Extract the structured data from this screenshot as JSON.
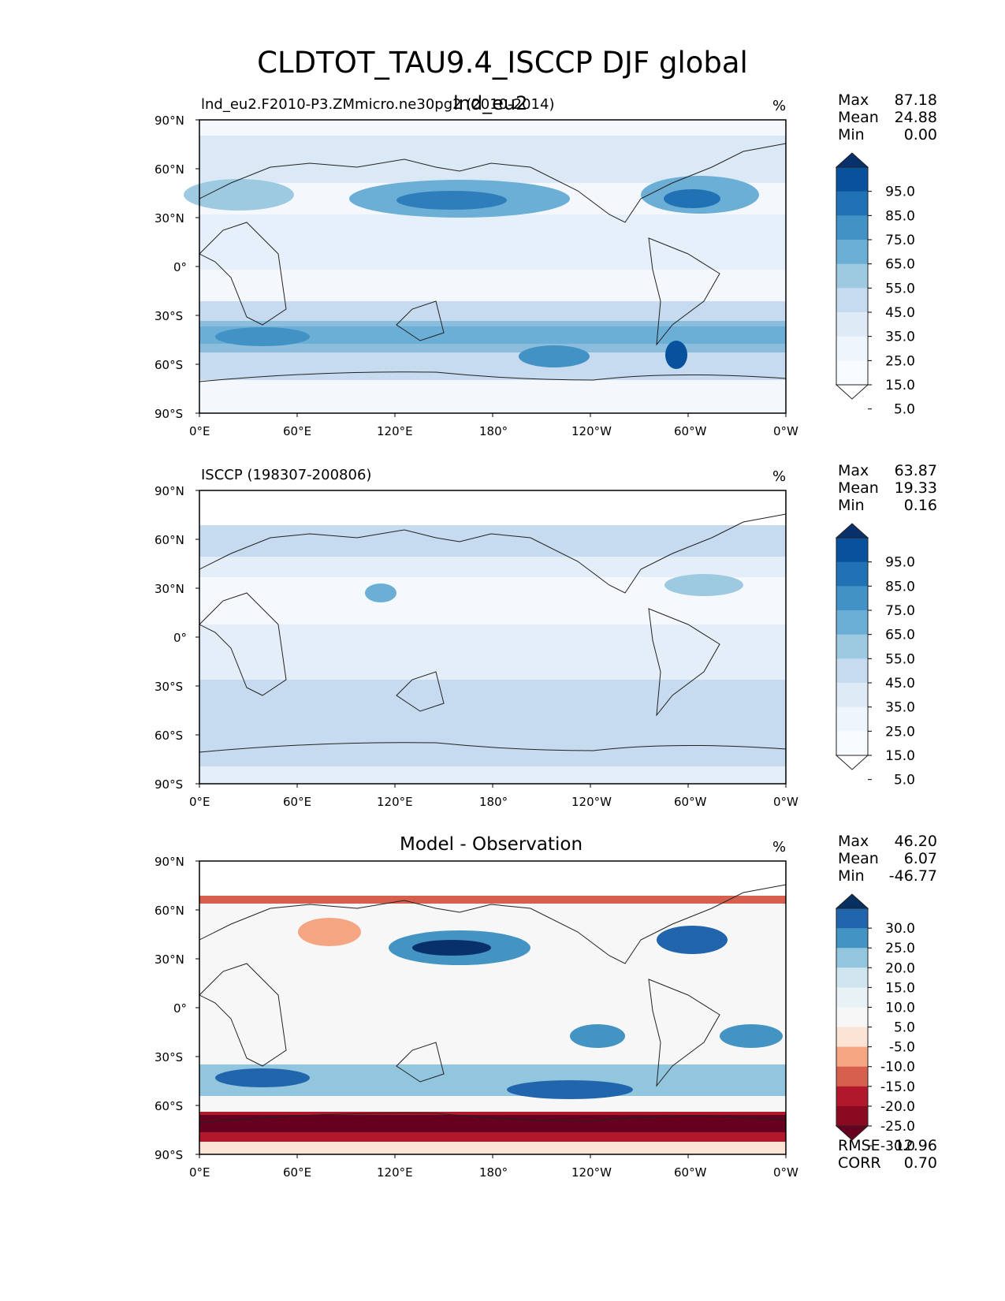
{
  "figure": {
    "title": "CLDTOT_TAU9.4_ISCCP DJF global",
    "units": "%",
    "lat_ticks": [
      "90°N",
      "60°N",
      "30°N",
      "0°",
      "30°S",
      "60°S",
      "90°S"
    ],
    "lon_ticks": [
      "0°E",
      "60°E",
      "120°E",
      "180°",
      "120°W",
      "60°W",
      "0°W"
    ]
  },
  "panels": [
    {
      "left_title": "lnd_eu2.F2010-P3.ZMmicro.ne30pg2 (2010-2014)",
      "center_title": "lnd_eu2",
      "units": "%",
      "stats": {
        "labels": [
          "Max",
          "Mean",
          "Min"
        ],
        "values": [
          "87.18",
          "24.88",
          "0.00"
        ]
      },
      "colorbar": {
        "labels": [
          "95.0",
          "85.0",
          "75.0",
          "65.0",
          "55.0",
          "45.0",
          "35.0",
          "25.0",
          "15.0",
          "5.0"
        ],
        "colors": [
          "#08306b",
          "#08519c",
          "#2171b5",
          "#4292c6",
          "#6baed6",
          "#9ecae1",
          "#c6dbef",
          "#deebf7",
          "#eef5fc",
          "#f7fbff",
          "#ffffff"
        ]
      }
    },
    {
      "left_title": "ISCCP (198307-200806)",
      "center_title": "",
      "units": "%",
      "stats": {
        "labels": [
          "Max",
          "Mean",
          "Min"
        ],
        "values": [
          "63.87",
          "19.33",
          "0.16"
        ]
      },
      "colorbar": {
        "labels": [
          "95.0",
          "85.0",
          "75.0",
          "65.0",
          "55.0",
          "45.0",
          "35.0",
          "25.0",
          "15.0",
          "5.0"
        ],
        "colors": [
          "#08306b",
          "#08519c",
          "#2171b5",
          "#4292c6",
          "#6baed6",
          "#9ecae1",
          "#c6dbef",
          "#deebf7",
          "#eef5fc",
          "#f7fbff",
          "#ffffff"
        ]
      }
    },
    {
      "left_title": "",
      "center_title": "Model - Observation",
      "units": "%",
      "stats": {
        "labels": [
          "Max",
          "Mean",
          "Min"
        ],
        "values": [
          "46.20",
          "6.07",
          "-46.77"
        ]
      },
      "colorbar": {
        "labels": [
          "30.0",
          "25.0",
          "20.0",
          "15.0",
          "10.0",
          "5.0",
          "-5.0",
          "-10.0",
          "-15.0",
          "-20.0",
          "-25.0",
          "-30.0"
        ],
        "colors": [
          "#053061",
          "#2166ac",
          "#4393c3",
          "#92c5de",
          "#d1e5f0",
          "#e8f1f6",
          "#f7f7f7",
          "#fbe3d6",
          "#f4a582",
          "#d6604d",
          "#b2182b",
          "#8b0a21",
          "#67001f"
        ]
      },
      "extra_stats": {
        "labels": [
          "RMSE",
          "CORR"
        ],
        "values": [
          "12.96",
          "0.70"
        ]
      }
    }
  ]
}
